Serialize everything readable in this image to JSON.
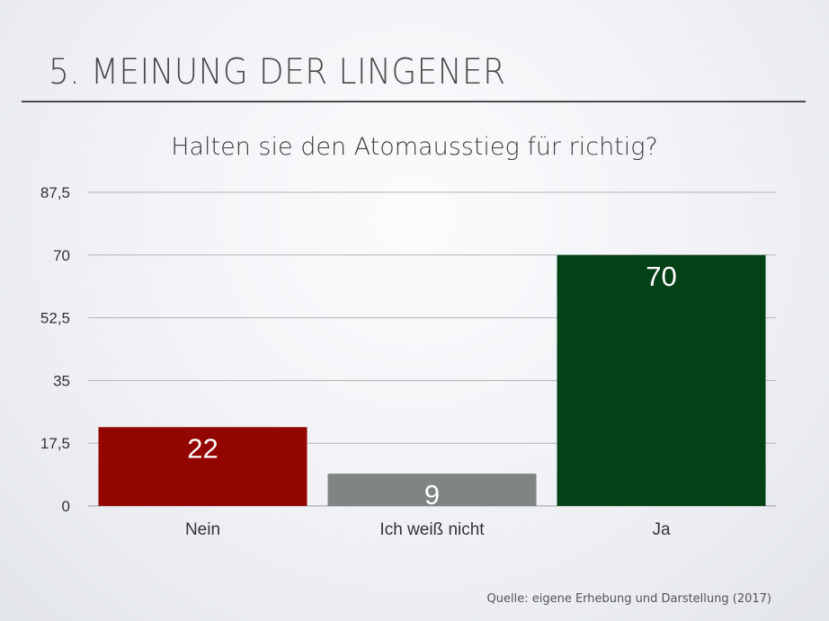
{
  "slide": {
    "title": "5. MEINUNG DER LINGENER",
    "source": "Quelle: eigene Erhebung und Darstellung (2017)"
  },
  "chart_data": {
    "type": "bar",
    "title": "Halten sie den Atomausstieg für richtig?",
    "categories": [
      "Nein",
      "Ich weiß nicht",
      "Ja"
    ],
    "values": [
      22,
      9,
      70
    ],
    "colors": [
      "#930600",
      "#7f8580",
      "#034216"
    ],
    "ylim": [
      0,
      87.5
    ],
    "yticks": [
      0,
      17.5,
      35,
      52.5,
      70,
      87.5
    ],
    "ytick_labels": [
      "0",
      "17,5",
      "35",
      "52,5",
      "70",
      "87,5"
    ],
    "grid": true,
    "legend": "none",
    "xlabel": "",
    "ylabel": ""
  }
}
